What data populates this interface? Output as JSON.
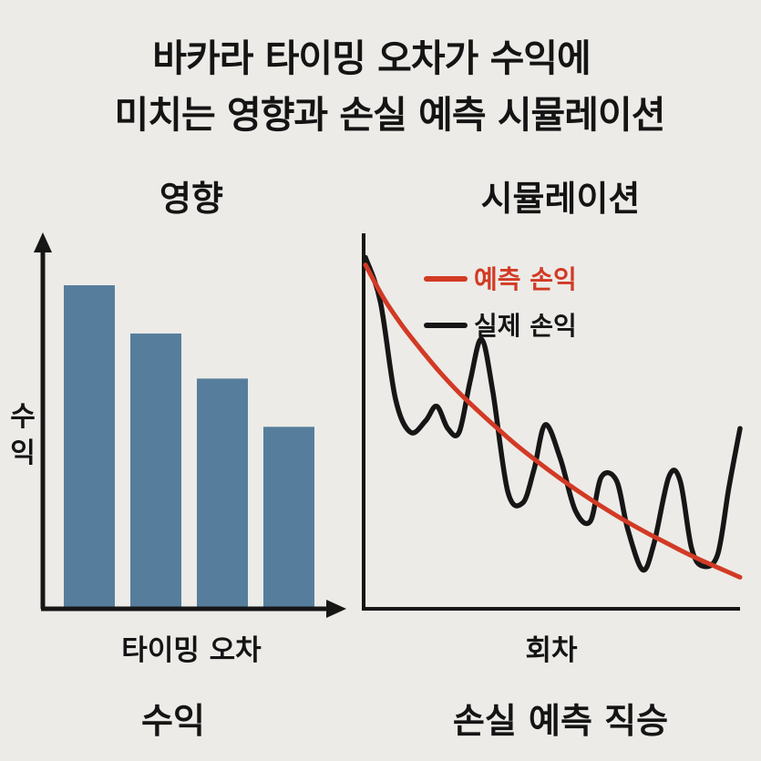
{
  "title": {
    "line1": "바카라 타이밍 오차가 수익에",
    "line2": "미치는 영향과 손실 예측 시뮬레이션"
  },
  "chart_data": [
    {
      "type": "bar",
      "title": "영향",
      "xlabel": "타이밍 오차",
      "ylabel": "수익",
      "caption": "수익",
      "categories": [
        "",
        "",
        "",
        ""
      ],
      "values": [
        100,
        85,
        71,
        56
      ],
      "ylim": [
        0,
        100
      ],
      "color": "#567e9c",
      "grid": false
    },
    {
      "type": "line",
      "title": "시뮬레이션",
      "xlabel": "회차",
      "caption": "손실 예측 직승",
      "xlim": [
        0,
        100
      ],
      "ylim": [
        0,
        100
      ],
      "grid": false,
      "legend_position": "top-right",
      "series": [
        {
          "name": "예측 손익",
          "color": "#d23a25",
          "x": [
            0,
            5,
            10,
            15,
            20,
            25,
            30,
            35,
            40,
            45,
            50,
            55,
            60,
            65,
            70,
            75,
            80,
            85,
            90,
            95,
            100
          ],
          "y": [
            92.0,
            82.8,
            75.4,
            69.0,
            63.0,
            57.6,
            52.8,
            48.2,
            43.8,
            39.8,
            36.0,
            32.4,
            29.0,
            25.8,
            22.8,
            20.0,
            17.4,
            14.8,
            12.4,
            10.2,
            8.0
          ]
        },
        {
          "name": "실제 손익",
          "color": "#161616",
          "x": [
            0,
            4,
            8,
            12,
            16,
            19,
            22,
            25,
            28,
            31,
            34,
            38,
            42,
            45,
            48,
            52,
            56,
            60,
            63,
            67,
            70,
            74,
            77,
            81,
            84,
            87,
            90,
            94,
            97,
            100
          ],
          "y": [
            94,
            82,
            56,
            47,
            50,
            54,
            48,
            47,
            61,
            72,
            58,
            31,
            28,
            37,
            49,
            40,
            26,
            23,
            35,
            34,
            21,
            10,
            17,
            35,
            34,
            16,
            11,
            14,
            32,
            48
          ]
        }
      ]
    }
  ]
}
